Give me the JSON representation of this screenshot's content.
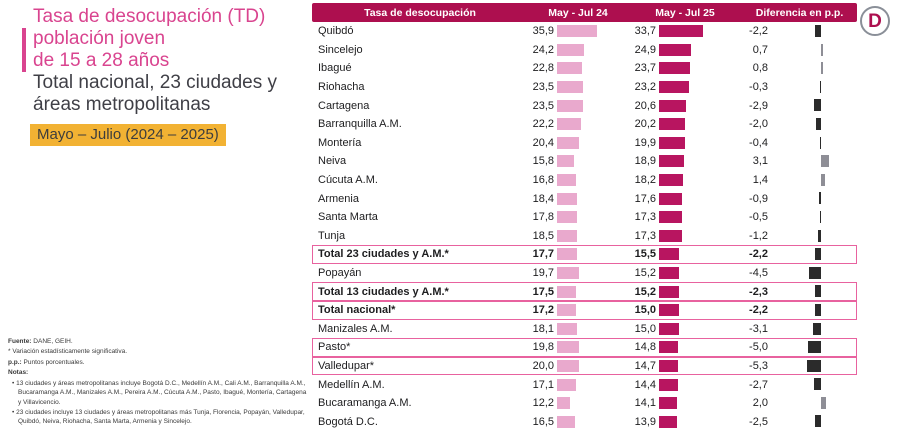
{
  "logo": {
    "letter": "D"
  },
  "header_panel": {
    "title_line1": "Tasa de desocupación (TD)",
    "title_line2": "población joven",
    "title_line3": "de 15 a 28 años",
    "subtitle_line1": "Total nacional, 23 ciudades y",
    "subtitle_line2": "áreas metropolitanas",
    "period_badge": "Mayo – Julio (2024 – 2025)"
  },
  "colors": {
    "title_pink": "#d9448f",
    "subtitle_gray": "#3f3f46",
    "badge_yellow": "#f2b233",
    "header_crimson": "#ad0f4f",
    "bar_2024_pink": "#e9a9cd",
    "bar_2025_crimson": "#b81560",
    "diff_negative": "#2b2b2b",
    "diff_positive": "#8e8e96",
    "box_outline": "#e8629f"
  },
  "table": {
    "headers": [
      "Tasa de desocupación",
      "May - Jul 24",
      "May - Jul 25",
      "Diferencia en p.p."
    ],
    "rows": [
      {
        "name": "Quibdó",
        "v24": "35,9",
        "v25": "33,7",
        "diff": "-2,2",
        "bold": false,
        "boxed": false
      },
      {
        "name": "Sincelejo",
        "v24": "24,2",
        "v25": "24,9",
        "diff": "0,7",
        "bold": false,
        "boxed": false
      },
      {
        "name": "Ibagué",
        "v24": "22,8",
        "v25": "23,7",
        "diff": "0,8",
        "bold": false,
        "boxed": false
      },
      {
        "name": "Riohacha",
        "v24": "23,5",
        "v25": "23,2",
        "diff": "-0,3",
        "bold": false,
        "boxed": false
      },
      {
        "name": "Cartagena",
        "v24": "23,5",
        "v25": "20,6",
        "diff": "-2,9",
        "bold": false,
        "boxed": false
      },
      {
        "name": "Barranquilla A.M.",
        "v24": "22,2",
        "v25": "20,2",
        "diff": "-2,0",
        "bold": false,
        "boxed": false
      },
      {
        "name": "Montería",
        "v24": "20,4",
        "v25": "19,9",
        "diff": "-0,4",
        "bold": false,
        "boxed": false
      },
      {
        "name": "Neiva",
        "v24": "15,8",
        "v25": "18,9",
        "diff": "3,1",
        "bold": false,
        "boxed": false
      },
      {
        "name": "Cúcuta A.M.",
        "v24": "16,8",
        "v25": "18,2",
        "diff": "1,4",
        "bold": false,
        "boxed": false
      },
      {
        "name": "Armenia",
        "v24": "18,4",
        "v25": "17,6",
        "diff": "-0,9",
        "bold": false,
        "boxed": false
      },
      {
        "name": "Santa Marta",
        "v24": "17,8",
        "v25": "17,3",
        "diff": "-0,5",
        "bold": false,
        "boxed": false
      },
      {
        "name": "Tunja",
        "v24": "18,5",
        "v25": "17,3",
        "diff": "-1,2",
        "bold": false,
        "boxed": false
      },
      {
        "name": "Total 23 ciudades y A.M.*",
        "v24": "17,7",
        "v25": "15,5",
        "diff": "-2,2",
        "bold": true,
        "boxed": true
      },
      {
        "name": "Popayán",
        "v24": "19,7",
        "v25": "15,2",
        "diff": "-4,5",
        "bold": false,
        "boxed": false
      },
      {
        "name": "Total 13 ciudades y A.M.*",
        "v24": "17,5",
        "v25": "15,2",
        "diff": "-2,3",
        "bold": true,
        "boxed": true
      },
      {
        "name": "Total nacional*",
        "v24": "17,2",
        "v25": "15,0",
        "diff": "-2,2",
        "bold": true,
        "boxed": true
      },
      {
        "name": "Manizales A.M.",
        "v24": "18,1",
        "v25": "15,0",
        "diff": "-3,1",
        "bold": false,
        "boxed": false
      },
      {
        "name": "Pasto*",
        "v24": "19,8",
        "v25": "14,8",
        "diff": "-5,0",
        "bold": false,
        "boxed": true
      },
      {
        "name": "Valledupar*",
        "v24": "20,0",
        "v25": "14,7",
        "diff": "-5,3",
        "bold": false,
        "boxed": true
      },
      {
        "name": "Medellín A.M.",
        "v24": "17,1",
        "v25": "14,4",
        "diff": "-2,7",
        "bold": false,
        "boxed": false
      },
      {
        "name": "Bucaramanga A.M.",
        "v24": "12,2",
        "v25": "14,1",
        "diff": "2,0",
        "bold": false,
        "boxed": false
      },
      {
        "name": "Bogotá D.C.",
        "v24": "16,5",
        "v25": "13,9",
        "diff": "-2,5",
        "bold": false,
        "boxed": false
      }
    ]
  },
  "footnotes": {
    "source_label": "Fuente:",
    "source_text": " DANE, GEIH.",
    "significance": "* Variación estadísticamente significativa.",
    "pp_label": "p.p.:",
    "pp_text": " Puntos porcentuales.",
    "notes_label": "Notas:",
    "note1": "13 ciudades y áreas metropolitanas incluye Bogotá D.C., Medellín A.M., Cali A.M., Barranquilla A.M., Bucaramanga A.M., Manizales A.M., Pereira A.M., Cúcuta A.M., Pasto, Ibagué, Montería, Cartagena y Villavicencio.",
    "note2": "23 ciudades incluye 13 ciudades y áreas metropolitanas más Tunja, Florencia, Popayán, Valledupar, Quibdó, Neiva, Riohacha, Santa Marta, Armenia y Sincelejo."
  },
  "chart_data": {
    "type": "bar",
    "orientation": "horizontal",
    "title": "Tasa de desocupación (TD) población joven de 15 a 28 años",
    "subtitle": "Total nacional, 23 ciudades y áreas metropolitanas",
    "period": "Mayo – Julio (2024 – 2025)",
    "categories": [
      "Quibdó",
      "Sincelejo",
      "Ibagué",
      "Riohacha",
      "Cartagena",
      "Barranquilla A.M.",
      "Montería",
      "Neiva",
      "Cúcuta A.M.",
      "Armenia",
      "Santa Marta",
      "Tunja",
      "Total 23 ciudades y A.M.*",
      "Popayán",
      "Total 13 ciudades y A.M.*",
      "Total nacional*",
      "Manizales A.M.",
      "Pasto*",
      "Valledupar*",
      "Medellín A.M.",
      "Bucaramanga A.M.",
      "Bogotá D.C."
    ],
    "series": [
      {
        "name": "May - Jul 24",
        "values": [
          35.9,
          24.2,
          22.8,
          23.5,
          23.5,
          22.2,
          20.4,
          15.8,
          16.8,
          18.4,
          17.8,
          18.5,
          17.7,
          19.7,
          17.5,
          17.2,
          18.1,
          19.8,
          20.0,
          17.1,
          12.2,
          16.5
        ]
      },
      {
        "name": "May - Jul 25",
        "values": [
          33.7,
          24.9,
          23.7,
          23.2,
          20.6,
          20.2,
          19.9,
          18.9,
          18.2,
          17.6,
          17.3,
          17.3,
          15.5,
          15.2,
          15.2,
          15.0,
          15.0,
          14.8,
          14.7,
          14.4,
          14.1,
          13.9
        ]
      },
      {
        "name": "Diferencia en p.p.",
        "values": [
          -2.2,
          0.7,
          0.8,
          -0.3,
          -2.9,
          -2.0,
          -0.4,
          3.1,
          1.4,
          -0.9,
          -0.5,
          -1.2,
          -2.2,
          -4.5,
          -2.3,
          -2.2,
          -3.1,
          -5.0,
          -5.3,
          -2.7,
          2.0,
          -2.5
        ]
      }
    ],
    "highlighted_categories": [
      "Total 23 ciudades y A.M.*",
      "Total 13 ciudades y A.M.*",
      "Total nacional*",
      "Pasto*",
      "Valledupar*"
    ],
    "legend_position": "column-headers",
    "grid": false
  }
}
